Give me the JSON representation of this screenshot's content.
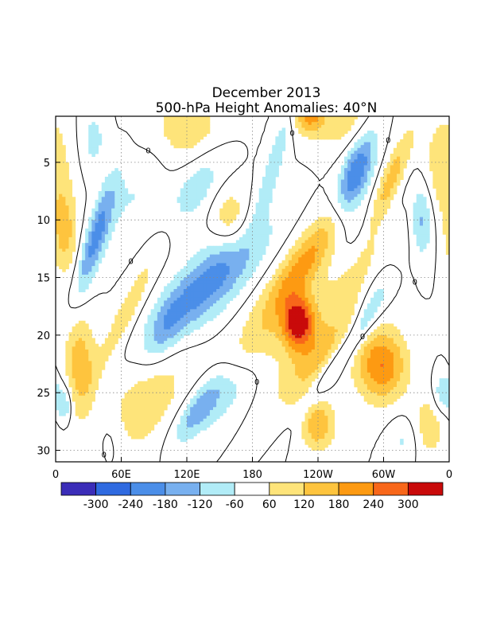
{
  "chart_data": {
    "type": "heatmap",
    "title": "December 2013",
    "subtitle": "500-hPa Height Anomalies: 40°N",
    "xlabel": "",
    "ylabel": "",
    "x_ticks": [
      "0",
      "60E",
      "120E",
      "180",
      "120W",
      "60W",
      "0"
    ],
    "y_ticks": [
      "5",
      "10",
      "15",
      "20",
      "25",
      "30"
    ],
    "y_tick_values": [
      5,
      10,
      15,
      20,
      25,
      30
    ],
    "ylim": [
      1,
      31
    ],
    "xlim_deg_east": [
      0,
      360
    ],
    "contour_zero_label": "0",
    "colorbar": {
      "labels": [
        "-300",
        "-240",
        "-180",
        "-120",
        "-60",
        "60",
        "120",
        "180",
        "240",
        "300"
      ],
      "label_values": [
        -300,
        -240,
        -180,
        -120,
        -60,
        60,
        120,
        180,
        240,
        300
      ],
      "colors": [
        "#3b2db8",
        "#2f6ae0",
        "#4b8ee8",
        "#78b0ef",
        "#b1ecf7",
        "#ffffff",
        "#fee47a",
        "#fec43e",
        "#fd9a12",
        "#f8671a",
        "#c90a0a"
      ]
    },
    "anomaly_features": [
      {
        "lon": 222,
        "day": 18.9,
        "value": 310,
        "spread_lon": 10,
        "spread_day": 1.6,
        "tilt_deg_per_day": 0
      },
      {
        "lon": 298,
        "day": 22.6,
        "value": 240,
        "spread_lon": 16,
        "spread_day": 2.2,
        "tilt_deg_per_day": 0
      },
      {
        "lon": 232,
        "day": 0.8,
        "value": 200,
        "spread_lon": 10,
        "spread_day": 1.2,
        "tilt_deg_per_day": 0
      },
      {
        "lon": 305,
        "day": 7,
        "value": 160,
        "spread_lon": 7,
        "spread_day": 3.2,
        "tilt_deg_per_day": -4
      },
      {
        "lon": 225,
        "day": 14,
        "value": 170,
        "spread_lon": 14,
        "spread_day": 3.5,
        "tilt_deg_per_day": -7
      },
      {
        "lon": 240,
        "day": 27.8,
        "value": 170,
        "spread_lon": 11,
        "spread_day": 1.6,
        "tilt_deg_per_day": 0
      },
      {
        "lon": 22,
        "day": 22.5,
        "value": 160,
        "spread_lon": 10,
        "spread_day": 3,
        "tilt_deg_per_day": 0
      },
      {
        "lon": 8,
        "day": 11,
        "value": 150,
        "spread_lon": 8,
        "spread_day": 2.6,
        "tilt_deg_per_day": 0
      },
      {
        "lon": 240,
        "day": 22,
        "value": 140,
        "spread_lon": 18,
        "spread_day": 3,
        "tilt_deg_per_day": -6
      },
      {
        "lon": 270,
        "day": 13,
        "value": 110,
        "spread_lon": 30,
        "spread_day": 4,
        "tilt_deg_per_day": -6
      },
      {
        "lon": 185,
        "day": 22,
        "value": 110,
        "spread_lon": 20,
        "spread_day": 3,
        "tilt_deg_per_day": -5
      },
      {
        "lon": 160,
        "day": 10,
        "value": 110,
        "spread_lon": 12,
        "spread_day": 2,
        "tilt_deg_per_day": 0
      },
      {
        "lon": 80,
        "day": 26,
        "value": 100,
        "spread_lon": 25,
        "spread_day": 3.5,
        "tilt_deg_per_day": -5
      },
      {
        "lon": 120,
        "day": 2,
        "value": 100,
        "spread_lon": 25,
        "spread_day": 2.2,
        "tilt_deg_per_day": 0
      },
      {
        "lon": 355,
        "day": 5,
        "value": 110,
        "spread_lon": 12,
        "spread_day": 3,
        "tilt_deg_per_day": 0
      },
      {
        "lon": 340,
        "day": 28,
        "value": 100,
        "spread_lon": 12,
        "spread_day": 2,
        "tilt_deg_per_day": 0
      },
      {
        "lon": 65,
        "day": 18,
        "value": 100,
        "spread_lon": 8,
        "spread_day": 4,
        "tilt_deg_per_day": -5
      },
      {
        "lon": 265,
        "day": 1.5,
        "value": 90,
        "spread_lon": 20,
        "spread_day": 2,
        "tilt_deg_per_day": 0
      },
      {
        "lon": 275,
        "day": 6,
        "value": -260,
        "spread_lon": 10,
        "spread_day": 2.8,
        "tilt_deg_per_day": -3
      },
      {
        "lon": 140,
        "day": 15.5,
        "value": -220,
        "spread_lon": 22,
        "spread_day": 3.5,
        "tilt_deg_per_day": -8
      },
      {
        "lon": 37,
        "day": 11.5,
        "value": -200,
        "spread_lon": 7,
        "spread_day": 3.5,
        "tilt_deg_per_day": -3
      },
      {
        "lon": 280,
        "day": 11,
        "value": -120,
        "spread_lon": 18,
        "spread_day": 3,
        "tilt_deg_per_day": -7
      },
      {
        "lon": 335,
        "day": 10,
        "value": -150,
        "spread_lon": 7,
        "spread_day": 2.2,
        "tilt_deg_per_day": 0
      },
      {
        "lon": 260,
        "day": 22,
        "value": -130,
        "spread_lon": 8,
        "spread_day": 3.5,
        "tilt_deg_per_day": -7
      },
      {
        "lon": 165,
        "day": 24.5,
        "value": -130,
        "spread_lon": 18,
        "spread_day": 2.5,
        "tilt_deg_per_day": -7
      },
      {
        "lon": 130,
        "day": 26.5,
        "value": -140,
        "spread_lon": 10,
        "spread_day": 2,
        "tilt_deg_per_day": -6
      },
      {
        "lon": 130,
        "day": 7,
        "value": -100,
        "spread_lon": 15,
        "spread_day": 2.5,
        "tilt_deg_per_day": -5
      },
      {
        "lon": 100,
        "day": 19.5,
        "value": -90,
        "spread_lon": 10,
        "spread_day": 2,
        "tilt_deg_per_day": -4
      },
      {
        "lon": 200,
        "day": 5,
        "value": -100,
        "spread_lon": 6,
        "spread_day": 3.5,
        "tilt_deg_per_day": -3
      },
      {
        "lon": 8,
        "day": 26,
        "value": -130,
        "spread_lon": 5,
        "spread_day": 1.2,
        "tilt_deg_per_day": 0
      },
      {
        "lon": 355,
        "day": 25,
        "value": -130,
        "spread_lon": 6,
        "spread_day": 1.2,
        "tilt_deg_per_day": 0
      },
      {
        "lon": 290,
        "day": 17,
        "value": -90,
        "spread_lon": 8,
        "spread_day": 2.5,
        "tilt_deg_per_day": -4
      },
      {
        "lon": 35,
        "day": 3,
        "value": -80,
        "spread_lon": 8,
        "spread_day": 2,
        "tilt_deg_per_day": 0
      },
      {
        "lon": 320,
        "day": 29,
        "value": -80,
        "spread_lon": 10,
        "spread_day": 1.5,
        "tilt_deg_per_day": 0
      },
      {
        "lon": 70,
        "day": 8,
        "value": -60,
        "spread_lon": 15,
        "spread_day": 3,
        "tilt_deg_per_day": -4
      },
      {
        "lon": 50,
        "day": 29,
        "value": -60,
        "spread_lon": 10,
        "spread_day": 2,
        "tilt_deg_per_day": 0
      }
    ]
  }
}
